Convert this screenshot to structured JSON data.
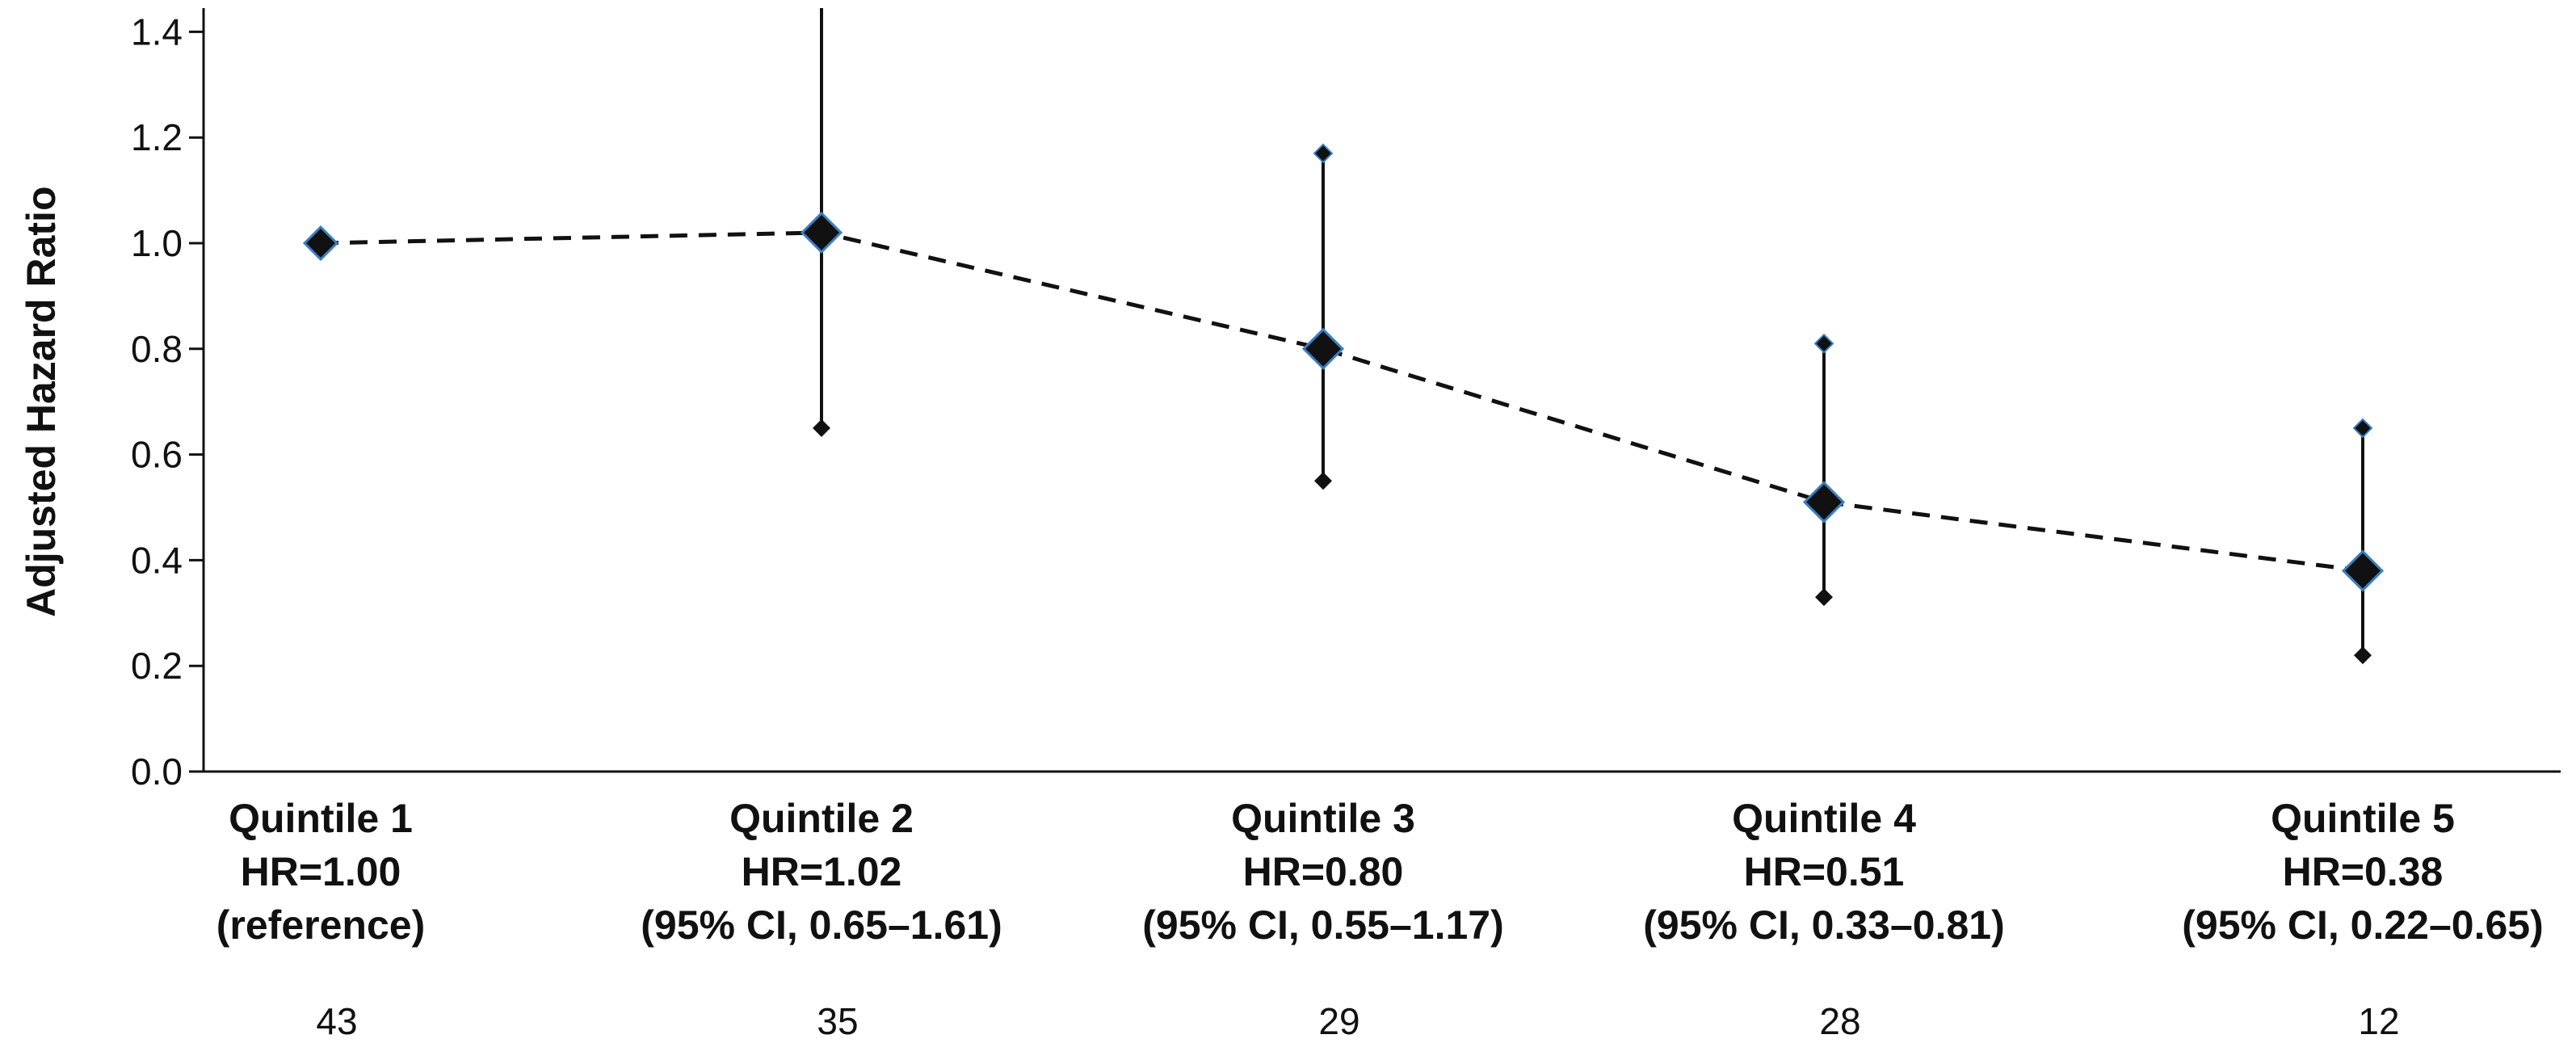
{
  "chart_data": {
    "type": "scatter",
    "ylabel": "Adjusted Hazard Ratio",
    "xlabel": "",
    "ylim": [
      0.0,
      1.4
    ],
    "yticks": [
      "0.0",
      "0.2",
      "0.4",
      "0.6",
      "0.8",
      "1.0",
      "1.2",
      "1.4"
    ],
    "grid": false,
    "categories": [
      "Quintile 1",
      "Quintile 2",
      "Quintile 3",
      "Quintile 4",
      "Quintile 5"
    ],
    "hr_labels": [
      "HR=1.00",
      "HR=1.02",
      "HR=0.80",
      "HR=0.51",
      "HR=0.38"
    ],
    "ci_labels": [
      "(reference)",
      "(95% CI, 0.65–1.61)",
      "(95% CI, 0.55–1.17)",
      "(95% CI, 0.33–0.81)",
      "(95% CI, 0.22–0.65)"
    ],
    "counts": [
      "43",
      "35",
      "29",
      "28",
      "12"
    ],
    "series": [
      {
        "values": [
          1.0,
          1.02,
          0.8,
          0.51,
          0.38
        ],
        "ci_lower": [
          null,
          0.65,
          0.55,
          0.33,
          0.22
        ],
        "ci_upper": [
          null,
          1.61,
          1.17,
          0.81,
          0.65
        ],
        "line_style": "dashed"
      }
    ],
    "colors": {
      "marker": "#111111",
      "marker_outline": "#3b7fc4",
      "axis": "#111111"
    }
  }
}
